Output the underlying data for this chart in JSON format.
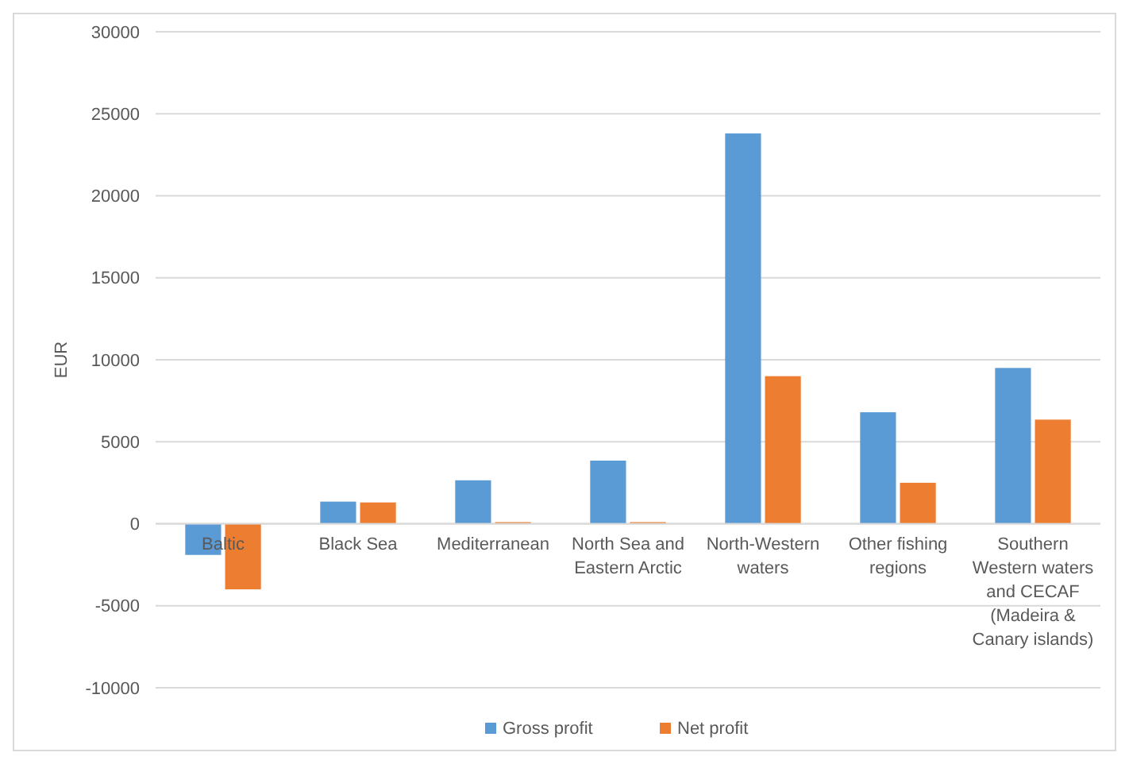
{
  "chart_data": {
    "type": "bar",
    "ylabel": "EUR",
    "categories": [
      "Baltic",
      "Black Sea",
      "Mediterranean",
      "North Sea and Eastern Arctic",
      "North-Western waters",
      "Other fishing regions",
      "Southern Western waters and CECAF (Madeira & Canary islands)"
    ],
    "series": [
      {
        "name": "Gross profit",
        "color": "#5b9bd5",
        "values": [
          -1900,
          1350,
          2650,
          3850,
          23800,
          6800,
          9500
        ]
      },
      {
        "name": "Net profit",
        "color": "#ed7d31",
        "values": [
          -4000,
          1300,
          100,
          100,
          9000,
          2500,
          6350
        ]
      }
    ],
    "ylim": [
      -10000,
      30000
    ],
    "yticks": [
      -10000,
      -5000,
      0,
      5000,
      10000,
      15000,
      20000,
      25000,
      30000
    ],
    "grid": "y",
    "legend": "bottom"
  }
}
